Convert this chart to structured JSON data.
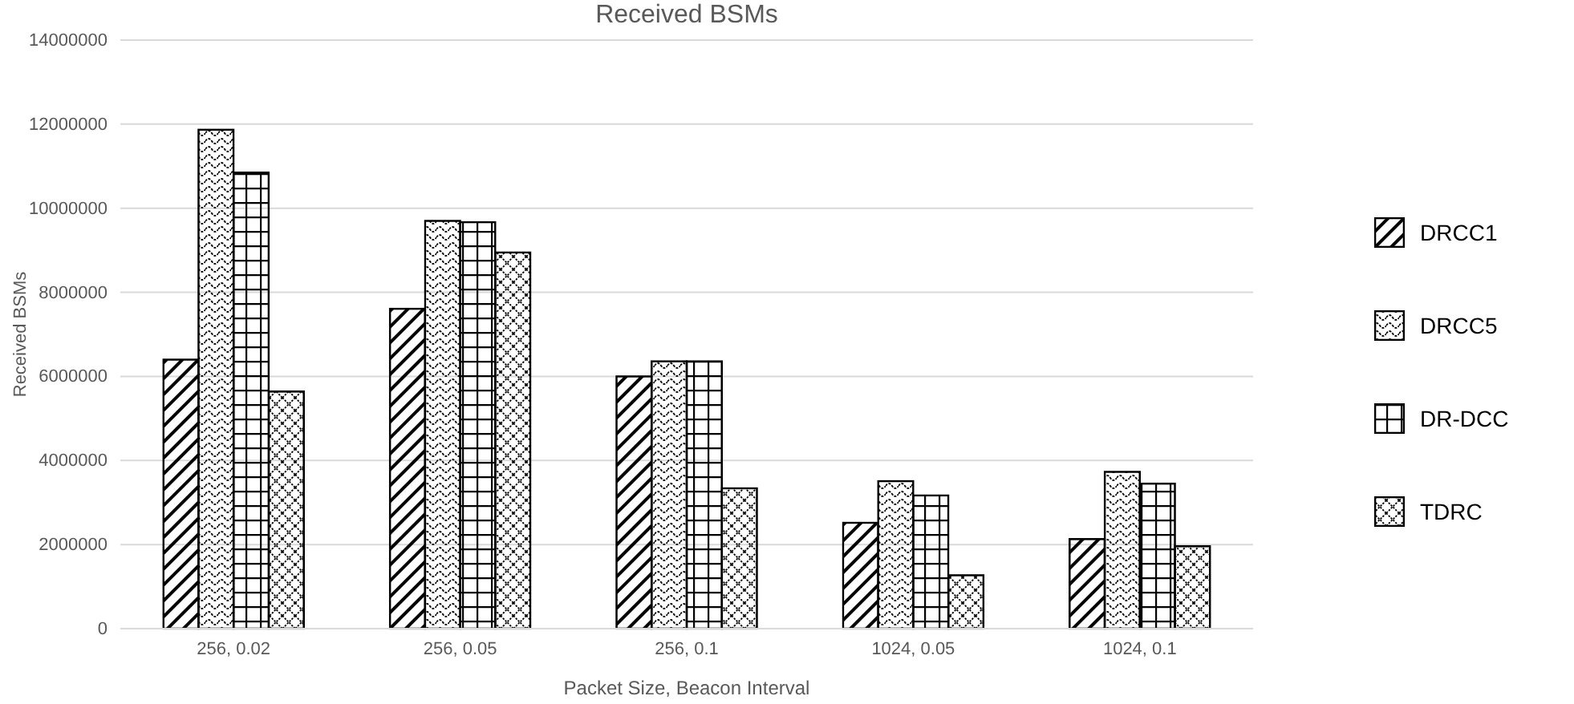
{
  "chart_data": {
    "type": "bar",
    "title": "Received BSMs",
    "xlabel": "Packet Size, Beacon Interval",
    "ylabel": "Received BSMs",
    "categories": [
      "256, 0.02",
      "256, 0.05",
      "256, 0.1",
      "1024, 0.05",
      "1024, 0.1"
    ],
    "ylim": [
      0,
      14000000
    ],
    "yticks": [
      0,
      2000000,
      4000000,
      6000000,
      8000000,
      10000000,
      12000000,
      14000000
    ],
    "grid": "y",
    "legend": "right",
    "series": [
      {
        "name": "DRCC1",
        "color": "#000000",
        "values": [
          6400000,
          7610000,
          6000000,
          2520000,
          2130000
        ]
      },
      {
        "name": "DRCC5",
        "color": "#000000",
        "values": [
          11870000,
          9700000,
          6360000,
          3510000,
          3730000
        ]
      },
      {
        "name": "DR-DCC",
        "color": "#000000",
        "values": [
          10850000,
          9670000,
          6360000,
          3170000,
          3450000
        ]
      },
      {
        "name": "TDRC",
        "color": "#000000",
        "values": [
          5640000,
          8950000,
          3340000,
          1270000,
          1960000
        ]
      }
    ]
  }
}
